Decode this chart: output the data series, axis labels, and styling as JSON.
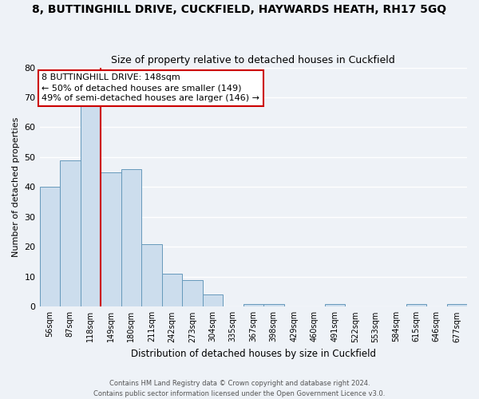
{
  "title": "8, BUTTINGHILL DRIVE, CUCKFIELD, HAYWARDS HEATH, RH17 5GQ",
  "subtitle": "Size of property relative to detached houses in Cuckfield",
  "xlabel": "Distribution of detached houses by size in Cuckfield",
  "ylabel": "Number of detached properties",
  "bar_labels": [
    "56sqm",
    "87sqm",
    "118sqm",
    "149sqm",
    "180sqm",
    "211sqm",
    "242sqm",
    "273sqm",
    "304sqm",
    "335sqm",
    "367sqm",
    "398sqm",
    "429sqm",
    "460sqm",
    "491sqm",
    "522sqm",
    "553sqm",
    "584sqm",
    "615sqm",
    "646sqm",
    "677sqm"
  ],
  "bar_values": [
    40,
    49,
    67,
    45,
    46,
    21,
    11,
    9,
    4,
    0,
    1,
    1,
    0,
    0,
    1,
    0,
    0,
    0,
    1,
    0,
    1
  ],
  "bar_color": "#ccdded",
  "bar_edge_color": "#6699bb",
  "vline_pos": 2.5,
  "vline_color": "#cc0000",
  "annotation_title": "8 BUTTINGHILL DRIVE: 148sqm",
  "annotation_line1": "← 50% of detached houses are smaller (149)",
  "annotation_line2": "49% of semi-detached houses are larger (146) →",
  "annotation_box_color": "#ffffff",
  "annotation_box_edge": "#cc0000",
  "ylim": [
    0,
    80
  ],
  "yticks": [
    0,
    10,
    20,
    30,
    40,
    50,
    60,
    70,
    80
  ],
  "footer_line1": "Contains HM Land Registry data © Crown copyright and database right 2024.",
  "footer_line2": "Contains public sector information licensed under the Open Government Licence v3.0.",
  "bg_color": "#eef2f7",
  "grid_color": "#ffffff",
  "title_fontsize": 10,
  "subtitle_fontsize": 9
}
